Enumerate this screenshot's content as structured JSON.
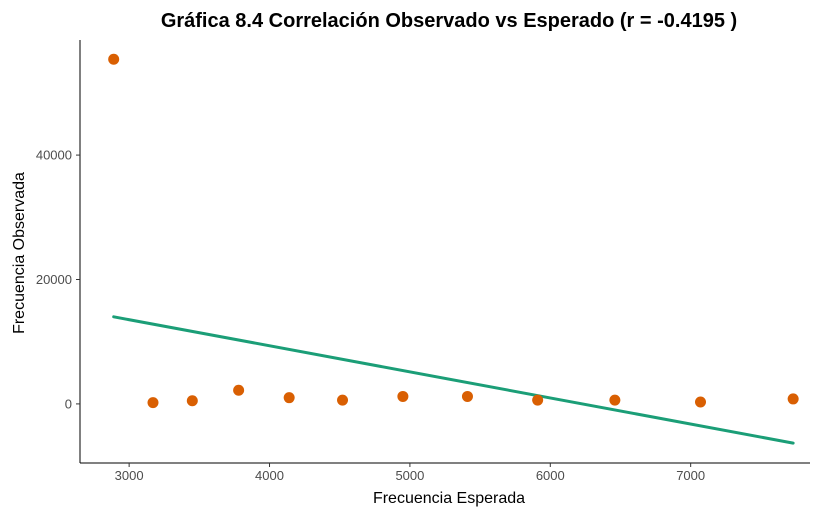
{
  "chart_data": {
    "type": "scatter",
    "title": "Gráfica 8.4 Correlación Observado vs Esperado (r = -0.4195 )",
    "xlabel": "Frecuencia Esperada",
    "ylabel": "Frecuencia Observada",
    "xlim": [
      2650,
      7850
    ],
    "ylim": [
      -9500,
      58500
    ],
    "x_ticks": [
      3000,
      4000,
      5000,
      6000,
      7000
    ],
    "y_ticks": [
      0,
      20000,
      40000
    ],
    "x_tick_labels": [
      "3000",
      "4000",
      "5000",
      "6000",
      "7000"
    ],
    "y_tick_labels": [
      "0",
      "20000",
      "40000"
    ],
    "grid": false,
    "points": [
      {
        "x": 2890,
        "y": 55400
      },
      {
        "x": 3170,
        "y": 200
      },
      {
        "x": 3450,
        "y": 500
      },
      {
        "x": 3780,
        "y": 2200
      },
      {
        "x": 4140,
        "y": 1000
      },
      {
        "x": 4520,
        "y": 600
      },
      {
        "x": 4950,
        "y": 1200
      },
      {
        "x": 5410,
        "y": 1200
      },
      {
        "x": 5910,
        "y": 600
      },
      {
        "x": 6460,
        "y": 600
      },
      {
        "x": 7070,
        "y": 300
      },
      {
        "x": 7730,
        "y": 800
      }
    ],
    "trend_line": {
      "x": [
        2890,
        7730
      ],
      "y": [
        14000,
        -6300
      ]
    },
    "colors": {
      "points": "#d95f02",
      "trend_line": "#1b9e77",
      "axis": "#000000",
      "tick_text": "#4d4d4d"
    }
  }
}
